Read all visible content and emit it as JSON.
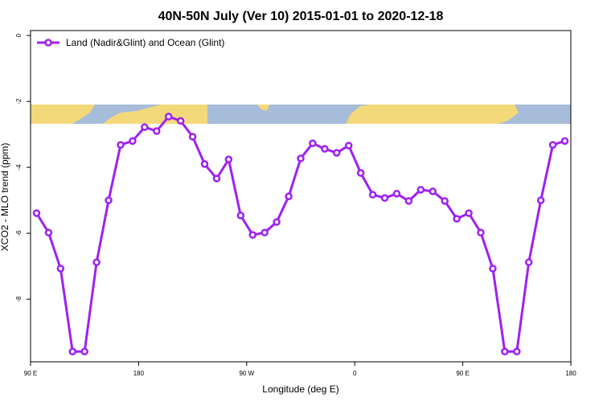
{
  "chart_data": {
    "type": "line",
    "title": "40N-50N July (Ver 10)   2015-01-01 to 2020-12-18",
    "x_label": "Longitude (deg E)",
    "y_label": "XCO2 - MLO trend (ppm)",
    "x": [
      95,
      105,
      115,
      125,
      135,
      145,
      155,
      165,
      175,
      185,
      195,
      205,
      215,
      225,
      235,
      245,
      255,
      265,
      275,
      285,
      295,
      305,
      315,
      325,
      335,
      345,
      355,
      365,
      375,
      385,
      395,
      405,
      415,
      425,
      435,
      445,
      455,
      465,
      475,
      485,
      495,
      505,
      515,
      525,
      535
    ],
    "series": [
      {
        "name": "Land (Nadir&Glint) and Ocean (Glint)",
        "color": "#a020f0",
        "values": [
          -5.39,
          -5.98,
          -7.07,
          -9.59,
          -9.59,
          -6.88,
          -5.0,
          -3.32,
          -3.2,
          -2.78,
          -2.9,
          -2.46,
          -2.59,
          -3.07,
          -3.9,
          -4.34,
          -3.76,
          -5.46,
          -6.05,
          -5.98,
          -5.66,
          -4.88,
          -3.73,
          -3.27,
          -3.44,
          -3.56,
          -3.34,
          -4.17,
          -4.83,
          -4.93,
          -4.8,
          -5.02,
          -4.68,
          -4.73,
          -5.02,
          -5.56,
          -5.39,
          -5.98,
          -7.07,
          -9.59,
          -9.59,
          -6.88,
          -5.0,
          -3.32,
          -3.2
        ]
      }
    ],
    "xlim": [
      90,
      540
    ],
    "xticks": [
      {
        "value": 90,
        "label": "90 E"
      },
      {
        "value": 180,
        "label": "180"
      },
      {
        "value": 270,
        "label": "90 W"
      },
      {
        "value": 360,
        "label": "0"
      },
      {
        "value": 450,
        "label": "90 E"
      },
      {
        "value": 540,
        "label": "180"
      }
    ],
    "ylim": [
      -9.9,
      0.15
    ],
    "yticks": [
      0,
      -2,
      -4,
      -6,
      -8
    ],
    "legend": "top-left"
  }
}
